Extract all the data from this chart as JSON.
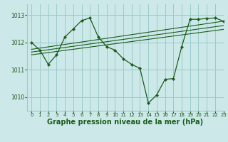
{
  "background_color": "#cce8e8",
  "grid_color": "#99cccc",
  "line_color": "#1a5c1a",
  "marker_color": "#1a5c1a",
  "xlabel": "Graphe pression niveau de la mer (hPa)",
  "xlabel_fontsize": 7,
  "ylim": [
    1009.5,
    1013.4
  ],
  "xlim": [
    -0.5,
    23
  ],
  "yticks": [
    1010,
    1011,
    1012,
    1013
  ],
  "xticks": [
    0,
    1,
    2,
    3,
    4,
    5,
    6,
    7,
    8,
    9,
    10,
    11,
    12,
    13,
    14,
    15,
    16,
    17,
    18,
    19,
    20,
    21,
    22,
    23
  ],
  "series": [
    {
      "x": [
        0,
        1,
        2,
        3,
        4,
        5,
        6,
        7,
        8,
        9,
        10,
        11,
        12,
        13,
        14,
        15,
        16,
        17,
        18,
        19,
        20,
        21,
        22,
        23
      ],
      "y": [
        1012.0,
        1011.72,
        1011.2,
        1011.55,
        1012.2,
        1012.5,
        1012.8,
        1012.9,
        1012.2,
        1011.85,
        1011.72,
        1011.4,
        1011.2,
        1011.05,
        1009.78,
        1010.08,
        1010.65,
        1010.68,
        1011.85,
        1012.85,
        1012.85,
        1012.88,
        1012.9,
        1012.78
      ],
      "marker": true
    },
    {
      "x": [
        0,
        23
      ],
      "y": [
        1011.75,
        1012.78
      ],
      "marker": false
    },
    {
      "x": [
        0,
        23
      ],
      "y": [
        1011.65,
        1012.62
      ],
      "marker": false
    },
    {
      "x": [
        0,
        23
      ],
      "y": [
        1011.55,
        1012.48
      ],
      "marker": false
    }
  ]
}
